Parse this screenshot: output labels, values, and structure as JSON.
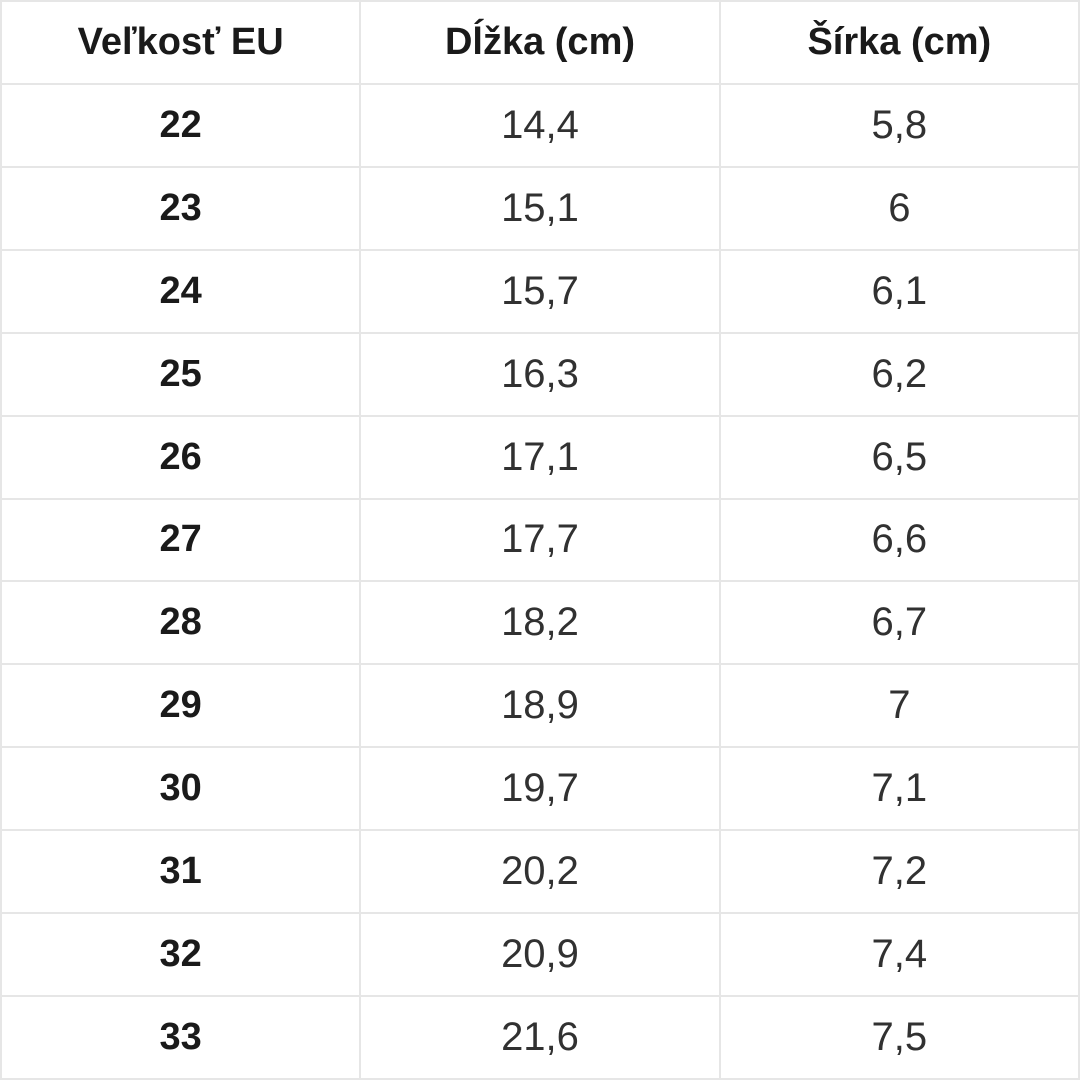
{
  "colors": {
    "background": "#ffffff",
    "grid_border": "#e6e6e6",
    "header_text": "#1a1a1a",
    "cell_text": "#313131"
  },
  "chart_data": {
    "type": "table",
    "title": "",
    "columns": [
      "Veľkosť EU",
      "Dĺžka (cm)",
      "Šírka (cm)"
    ],
    "rows": [
      [
        "22",
        "14,4",
        "5,8"
      ],
      [
        "23",
        "15,1",
        "6"
      ],
      [
        "24",
        "15,7",
        "6,1"
      ],
      [
        "25",
        "16,3",
        "6,2"
      ],
      [
        "26",
        "17,1",
        "6,5"
      ],
      [
        "27",
        "17,7",
        "6,6"
      ],
      [
        "28",
        "18,2",
        "6,7"
      ],
      [
        "29",
        "18,9",
        "7"
      ],
      [
        "30",
        "19,7",
        "7,1"
      ],
      [
        "31",
        "20,2",
        "7,2"
      ],
      [
        "32",
        "20,9",
        "7,4"
      ],
      [
        "33",
        "21,6",
        "7,5"
      ]
    ]
  }
}
